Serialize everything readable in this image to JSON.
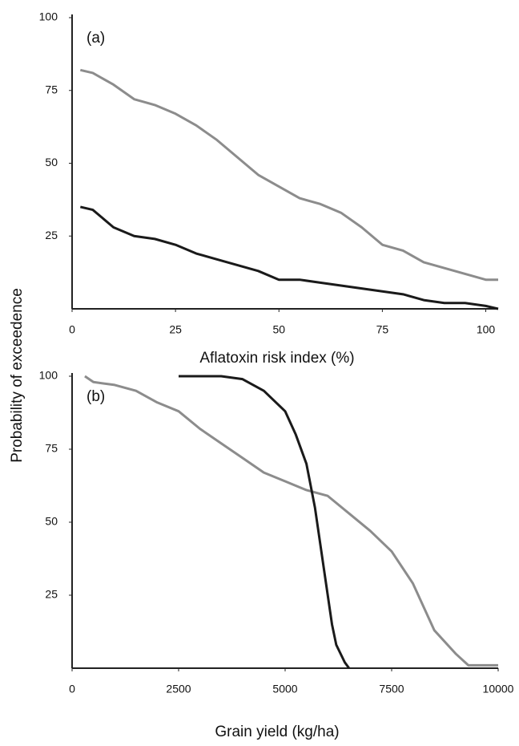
{
  "chart_data": [
    {
      "type": "line",
      "annotation": "(a)",
      "xlabel": "Aflatoxin risk index (%)",
      "ylabel": "Probability of exceedence",
      "xlim": [
        0,
        103
      ],
      "ylim": [
        0,
        100
      ],
      "xticks": [
        0,
        25,
        50,
        75,
        100
      ],
      "yticks": [
        25,
        50,
        75,
        100
      ],
      "series": [
        {
          "color": "#8c8c8c",
          "x": [
            2,
            5,
            10,
            15,
            20,
            25,
            30,
            35,
            40,
            45,
            50,
            55,
            60,
            65,
            70,
            75,
            80,
            85,
            90,
            95,
            100,
            103
          ],
          "values": [
            82,
            81,
            77,
            72,
            70,
            67,
            63,
            58,
            52,
            46,
            42,
            38,
            36,
            33,
            28,
            22,
            20,
            16,
            14,
            12,
            10,
            10
          ]
        },
        {
          "color": "#1a1a1a",
          "x": [
            2,
            5,
            10,
            15,
            20,
            25,
            30,
            35,
            40,
            45,
            50,
            55,
            60,
            65,
            70,
            75,
            80,
            85,
            90,
            95,
            100,
            103
          ],
          "values": [
            35,
            34,
            28,
            25,
            24,
            22,
            19,
            17,
            15,
            13,
            10,
            10,
            9,
            8,
            7,
            6,
            5,
            3,
            2,
            2,
            1,
            0
          ]
        }
      ]
    },
    {
      "type": "line",
      "annotation": "(b)",
      "xlabel": "Grain yield (kg/ha)",
      "xlim": [
        0,
        10000
      ],
      "ylim": [
        0,
        100
      ],
      "xticks": [
        0,
        2500,
        5000,
        7500,
        10000
      ],
      "yticks": [
        25,
        50,
        75,
        100
      ],
      "series": [
        {
          "color": "#8c8c8c",
          "x": [
            300,
            500,
            1000,
            1500,
            2000,
            2500,
            3000,
            3500,
            4000,
            4500,
            5000,
            5500,
            6000,
            6500,
            7000,
            7500,
            8000,
            8500,
            9000,
            9300,
            10000
          ],
          "values": [
            100,
            98,
            97,
            95,
            91,
            88,
            82,
            77,
            72,
            67,
            64,
            61,
            59,
            53,
            47,
            40,
            29,
            13,
            5,
            1,
            1
          ]
        },
        {
          "color": "#1a1a1a",
          "x": [
            2500,
            3000,
            3500,
            4000,
            4500,
            5000,
            5250,
            5500,
            5700,
            5800,
            5900,
            6000,
            6100,
            6200,
            6400,
            6500
          ],
          "values": [
            100,
            100,
            100,
            99,
            95,
            88,
            80,
            70,
            55,
            45,
            35,
            25,
            15,
            8,
            2,
            0
          ]
        }
      ]
    }
  ]
}
